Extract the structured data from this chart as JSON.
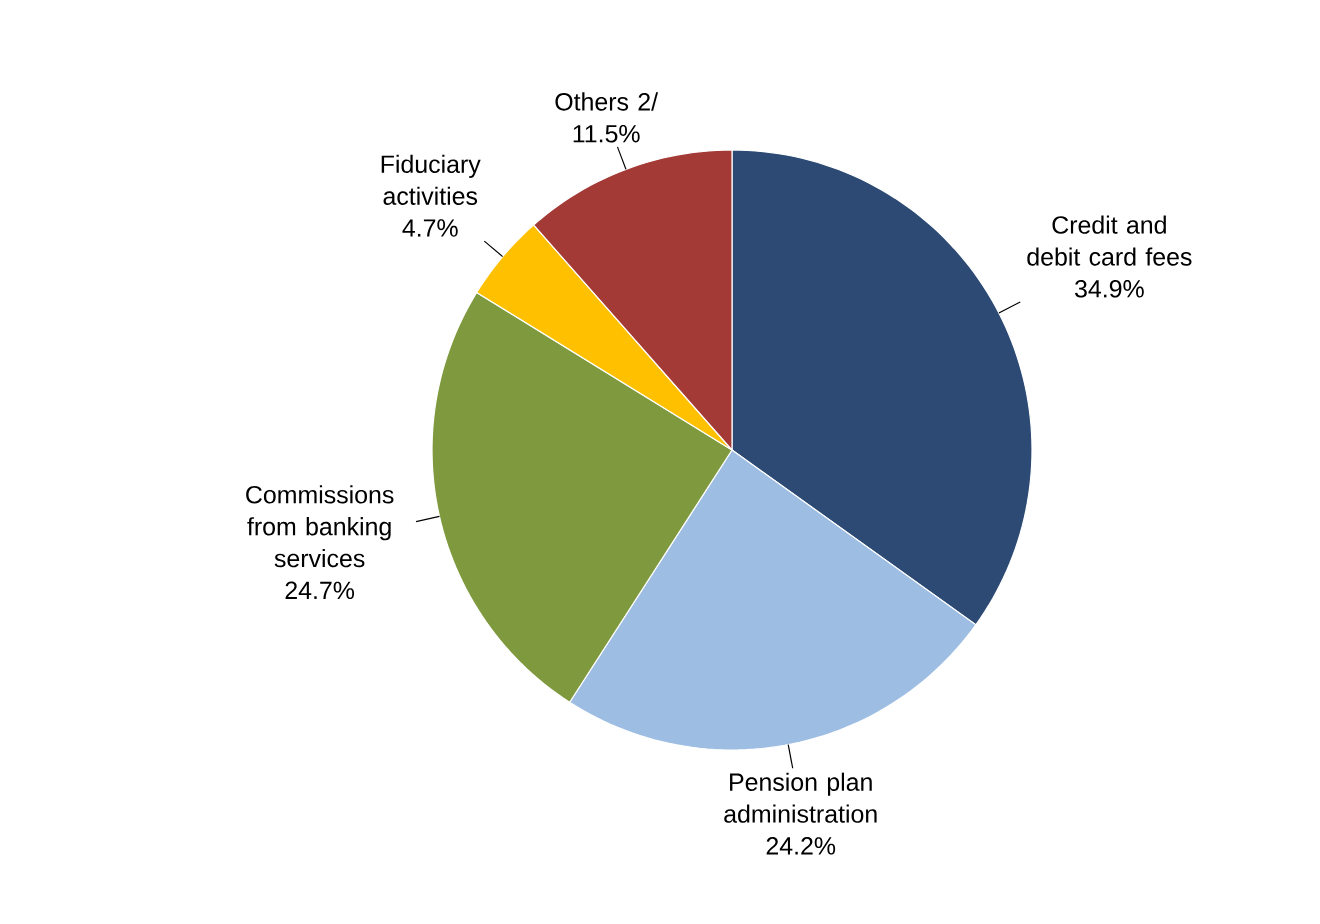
{
  "chart_data": {
    "type": "pie",
    "categories": [
      "Credit and debit card fees",
      "Pension plan administration",
      "Commissions from banking services",
      "Fiduciary activities",
      "Others 2/"
    ],
    "values": [
      34.9,
      24.2,
      24.7,
      4.7,
      11.5
    ],
    "value_labels": [
      "34.9%",
      "24.2%",
      "24.7%",
      "4.7%",
      "11.5%"
    ],
    "colors": [
      "#2c4a73",
      "#9dbde3",
      "#7f9a3e",
      "#ffc000",
      "#a33a35"
    ]
  }
}
